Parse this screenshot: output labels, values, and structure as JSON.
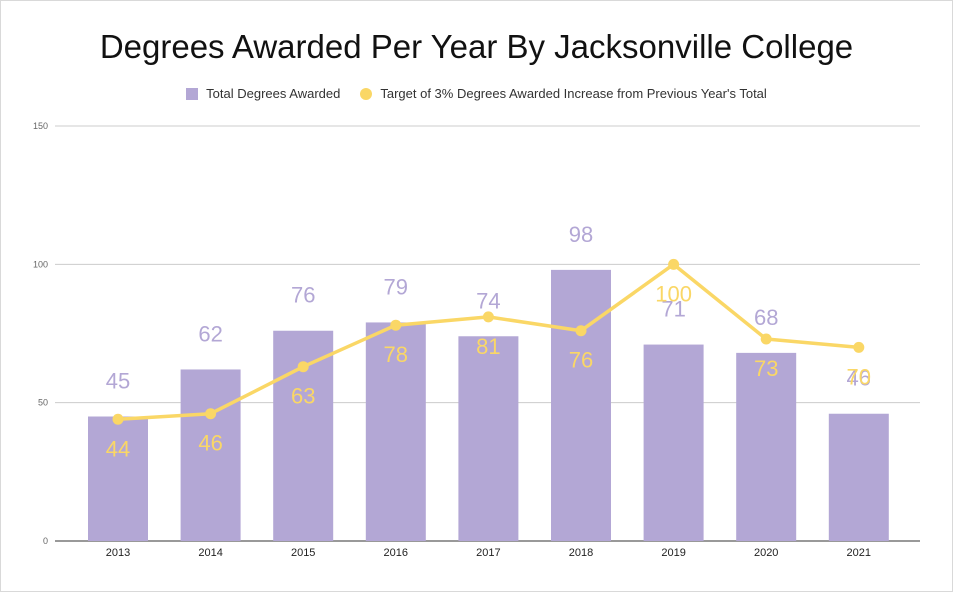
{
  "chart_data": {
    "type": "bar",
    "title": "Degrees Awarded Per Year By Jacksonville College",
    "categories": [
      "2013",
      "2014",
      "2015",
      "2016",
      "2017",
      "2018",
      "2019",
      "2020",
      "2021"
    ],
    "series": [
      {
        "name": "Total Degrees Awarded",
        "type": "bar",
        "color": "#b3a7d5",
        "values": [
          45,
          62,
          76,
          79,
          74,
          98,
          71,
          68,
          46
        ]
      },
      {
        "name": "Target of 3% Degrees Awarded Increase from Previous Year's Total",
        "type": "line",
        "color": "#fad766",
        "values": [
          44,
          46,
          63,
          78,
          81,
          76,
          100,
          73,
          70
        ]
      }
    ],
    "ylim": [
      0,
      150
    ],
    "yticks": [
      0,
      50,
      100,
      150
    ],
    "grid": true,
    "legend": "top"
  }
}
